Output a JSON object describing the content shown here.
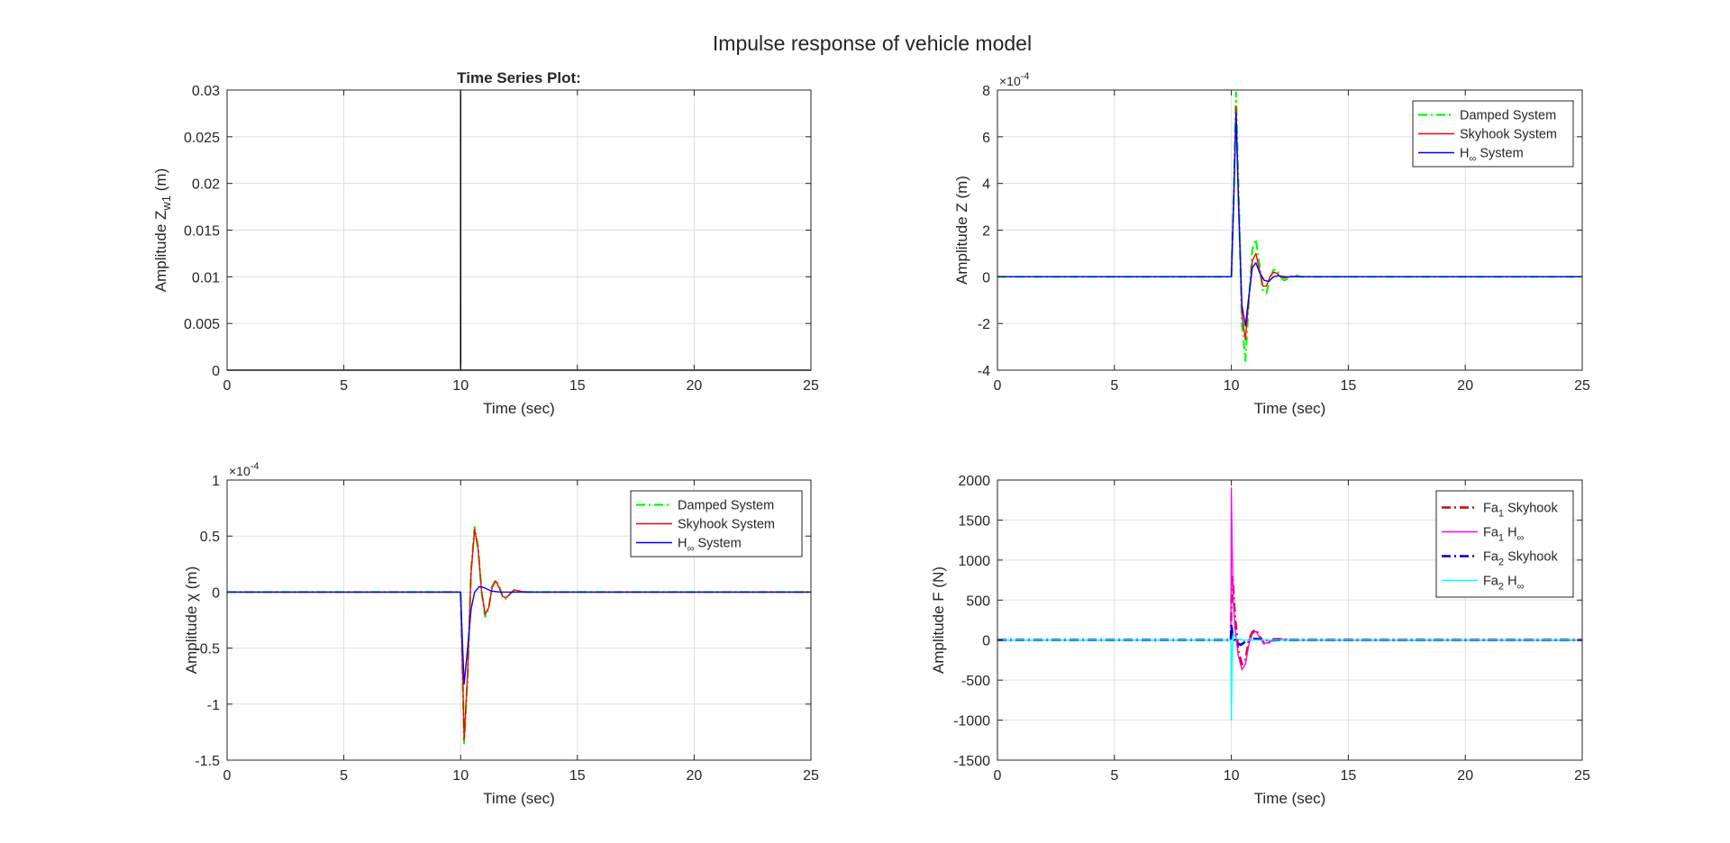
{
  "figure": {
    "title": "Impulse response of vehicle model",
    "colors": {
      "axis": "#262626",
      "grid": "#dfdfdf",
      "green": "#00ff00",
      "red": "#ff0000",
      "blue": "#0000ff",
      "magenta": "#ff00ff",
      "cyan": "#00ffff",
      "darkred": "#d40000",
      "darkblue": "#0000cc",
      "black": "#000000"
    }
  },
  "chart_data": [
    {
      "id": "p1",
      "type": "line",
      "title": "Time Series Plot:",
      "xlabel": "Time (sec)",
      "ylabel": {
        "main": "Amplitude Z",
        "sub": "w1",
        "tail": " (m)"
      },
      "xlim": [
        0,
        25
      ],
      "ylim": [
        0,
        0.03
      ],
      "xticks": [
        0,
        5,
        10,
        15,
        20,
        25
      ],
      "yticks": [
        0,
        0.005,
        0.01,
        0.015,
        0.02,
        0.025,
        0.03
      ],
      "ytick_labels": [
        "0",
        "0.005",
        "0.01",
        "0.015",
        "0.02",
        "0.025",
        "0.03"
      ],
      "exponent": null,
      "grid": true,
      "legend_position": null,
      "series": [
        {
          "color": "#000000",
          "dash": "solid",
          "width": 1.4,
          "x": [
            0,
            9.995,
            10,
            10,
            10.005,
            25
          ],
          "y": [
            0,
            0,
            0,
            0.03,
            0,
            0
          ]
        }
      ],
      "legend": []
    },
    {
      "id": "p2",
      "type": "line",
      "title": "",
      "xlabel": "Time (sec)",
      "ylabel": {
        "main": "Amplitude Z (m)",
        "sub": "",
        "tail": ""
      },
      "xlim": [
        0,
        25
      ],
      "ylim": [
        -4,
        8
      ],
      "xticks": [
        0,
        5,
        10,
        15,
        20,
        25
      ],
      "yticks": [
        -4,
        -2,
        0,
        2,
        4,
        6,
        8
      ],
      "ytick_labels": [
        "-4",
        "-2",
        "0",
        "2",
        "4",
        "6",
        "8"
      ],
      "exponent": "-4",
      "grid": true,
      "legend_position": "top-right",
      "series": [
        {
          "name": "Damped System",
          "color": "#00ff00",
          "dash": "dashdot",
          "width": 2.2,
          "x": [
            0,
            10,
            10.1,
            10.2,
            10.3,
            10.45,
            10.6,
            10.75,
            10.9,
            11.05,
            11.2,
            11.35,
            11.5,
            11.65,
            11.8,
            11.95,
            12.1,
            12.25,
            12.4,
            12.6,
            12.8,
            13.0,
            13.3,
            25
          ],
          "y": [
            0,
            0,
            3.5,
            7.9,
            4.0,
            -2.0,
            -3.6,
            -1.0,
            1.2,
            1.6,
            0.5,
            -0.6,
            -0.7,
            -0.1,
            0.3,
            0.3,
            0.0,
            -0.15,
            -0.1,
            0.05,
            0.05,
            0,
            0,
            0
          ]
        },
        {
          "name": "Skyhook System",
          "color": "#ff0000",
          "dash": "solid",
          "width": 1.4,
          "x": [
            0,
            10,
            10.1,
            10.2,
            10.3,
            10.45,
            10.6,
            10.75,
            10.9,
            11.05,
            11.2,
            11.35,
            11.5,
            11.65,
            11.8,
            11.95,
            12.1,
            12.3,
            12.6,
            13.0,
            25
          ],
          "y": [
            0,
            0,
            3.4,
            7.3,
            3.6,
            -1.6,
            -2.7,
            -0.9,
            0.7,
            1.0,
            0.3,
            -0.4,
            -0.4,
            0.0,
            0.2,
            0.15,
            0.0,
            -0.05,
            0.02,
            0,
            0
          ]
        },
        {
          "name": "H∞ System",
          "color": "#0000ff",
          "dash": "solid",
          "width": 1.4,
          "x": [
            0,
            10,
            10.1,
            10.2,
            10.3,
            10.45,
            10.6,
            10.75,
            10.9,
            11.05,
            11.2,
            11.4,
            11.6,
            11.8,
            12.0,
            12.3,
            12.7,
            13.0,
            25
          ],
          "y": [
            0,
            0,
            3.2,
            7.0,
            3.3,
            -1.2,
            -2.1,
            -0.8,
            0.4,
            0.6,
            0.2,
            -0.15,
            -0.2,
            0.0,
            0.05,
            0.0,
            0.0,
            0,
            0
          ]
        }
      ],
      "legend": [
        {
          "label": "Damped System",
          "color": "#00ff00",
          "dash": "dashdot",
          "width": 2.2
        },
        {
          "label": "Skyhook System",
          "color": "#ff0000",
          "dash": "solid",
          "width": 1.4
        },
        {
          "label": "H",
          "sub": "∞",
          "tail": " System",
          "color": "#0000ff",
          "dash": "solid",
          "width": 1.4
        }
      ]
    },
    {
      "id": "p3",
      "type": "line",
      "title": "",
      "xlabel": "Time (sec)",
      "ylabel": {
        "main": "Amplitude χ (m)",
        "sub": "",
        "tail": ""
      },
      "xlim": [
        0,
        25
      ],
      "ylim": [
        -1.5,
        1
      ],
      "xticks": [
        0,
        5,
        10,
        15,
        20,
        25
      ],
      "yticks": [
        -1.5,
        -1,
        -0.5,
        0,
        0.5,
        1
      ],
      "ytick_labels": [
        "-1.5",
        "-1",
        "-0.5",
        "0",
        "0.5",
        "1"
      ],
      "exponent": "-4",
      "grid": true,
      "legend_position": "top-right",
      "series": [
        {
          "name": "Damped System",
          "color": "#00ff00",
          "dash": "dashdot",
          "width": 2.2,
          "x": [
            0,
            10,
            10.05,
            10.15,
            10.3,
            10.45,
            10.6,
            10.75,
            10.9,
            11.05,
            11.2,
            11.35,
            11.5,
            11.65,
            11.8,
            11.95,
            12.1,
            12.3,
            12.5,
            12.8,
            13.1,
            25
          ],
          "y": [
            0,
            0,
            -0.4,
            -1.35,
            -0.75,
            0.2,
            0.58,
            0.4,
            0.0,
            -0.22,
            -0.15,
            0.05,
            0.11,
            0.05,
            -0.04,
            -0.06,
            -0.02,
            0.02,
            0.01,
            0,
            0,
            0
          ]
        },
        {
          "name": "Skyhook System",
          "color": "#ff0000",
          "dash": "solid",
          "width": 1.4,
          "x": [
            0,
            10,
            10.05,
            10.15,
            10.3,
            10.45,
            10.6,
            10.75,
            10.9,
            11.05,
            11.2,
            11.35,
            11.5,
            11.65,
            11.8,
            11.95,
            12.1,
            12.3,
            12.5,
            12.8,
            13.1,
            25
          ],
          "y": [
            0,
            0,
            -0.4,
            -1.32,
            -0.72,
            0.18,
            0.56,
            0.38,
            0.0,
            -0.2,
            -0.14,
            0.04,
            0.1,
            0.04,
            -0.04,
            -0.05,
            -0.02,
            0.02,
            0.01,
            0,
            0,
            0
          ]
        },
        {
          "name": "H∞ System",
          "color": "#0000ff",
          "dash": "solid",
          "width": 1.4,
          "x": [
            0,
            10,
            10.05,
            10.15,
            10.3,
            10.45,
            10.6,
            10.8,
            11.0,
            11.3,
            11.7,
            12.2,
            25
          ],
          "y": [
            0,
            0,
            -0.3,
            -0.82,
            -0.5,
            -0.15,
            0.0,
            0.05,
            0.04,
            0.01,
            0.0,
            0,
            0
          ]
        }
      ],
      "legend": [
        {
          "label": "Damped System",
          "color": "#00ff00",
          "dash": "dashdot",
          "width": 2.2
        },
        {
          "label": "Skyhook System",
          "color": "#ff0000",
          "dash": "solid",
          "width": 1.4
        },
        {
          "label": "H",
          "sub": "∞",
          "tail": " System",
          "color": "#0000ff",
          "dash": "solid",
          "width": 1.4
        }
      ]
    },
    {
      "id": "p4",
      "type": "line",
      "title": "",
      "xlabel": "Time (sec)",
      "ylabel": {
        "main": "Amplitude F (N)",
        "sub": "",
        "tail": ""
      },
      "xlim": [
        0,
        25
      ],
      "ylim": [
        -1500,
        2000
      ],
      "xticks": [
        0,
        5,
        10,
        15,
        20,
        25
      ],
      "yticks": [
        -1500,
        -1000,
        -500,
        0,
        500,
        1000,
        1500,
        2000
      ],
      "ytick_labels": [
        "-1500",
        "-1000",
        "-500",
        "0",
        "500",
        "1000",
        "1500",
        "2000"
      ],
      "exponent": null,
      "grid": true,
      "legend_position": "top-right",
      "series": [
        {
          "name": "Fa1 Skyhook",
          "color": "#d40000",
          "dash": "dashdot",
          "width": 2.6,
          "x": [
            0,
            9.98,
            10.0,
            10.05,
            10.15,
            10.3,
            10.45,
            10.6,
            10.75,
            10.9,
            11.05,
            11.2,
            11.4,
            11.6,
            11.8,
            12.1,
            12.5,
            25
          ],
          "y": [
            0,
            0,
            500,
            800,
            300,
            -150,
            -300,
            -250,
            0,
            100,
            130,
            50,
            -40,
            -30,
            10,
            10,
            0,
            0
          ]
        },
        {
          "name": "Fa1 H∞",
          "color": "#ff00ff",
          "dash": "solid",
          "width": 1.4,
          "x": [
            0,
            9.98,
            10.0,
            10.03,
            10.08,
            10.15,
            10.3,
            10.45,
            10.6,
            10.75,
            10.9,
            11.05,
            11.2,
            11.4,
            11.6,
            11.8,
            12.1,
            12.5,
            25
          ],
          "y": [
            0,
            0,
            1900,
            1200,
            500,
            150,
            -200,
            -370,
            -300,
            -50,
            80,
            110,
            40,
            -40,
            -30,
            10,
            10,
            0,
            0
          ]
        },
        {
          "name": "Fa2 Skyhook",
          "color": "#0000cc",
          "dash": "dashdot",
          "width": 2.6,
          "x": [
            0,
            9.98,
            10.0,
            10.05,
            10.2,
            10.4,
            10.6,
            10.9,
            11.2,
            11.6,
            12.0,
            25
          ],
          "y": [
            0,
            0,
            200,
            60,
            -30,
            -60,
            -20,
            20,
            10,
            -5,
            0,
            0
          ]
        },
        {
          "name": "Fa2 H∞",
          "color": "#00ffff",
          "dash": "solid",
          "width": 1.4,
          "x": [
            0,
            9.98,
            10.0,
            10.03,
            10.08,
            10.2,
            10.5,
            11.0,
            25
          ],
          "y": [
            0,
            0,
            -1000,
            -300,
            80,
            20,
            0,
            0,
            0
          ]
        }
      ],
      "legend": [
        {
          "label": "Fa",
          "sub": "1",
          "tail": " Skyhook",
          "color": "#d40000",
          "dash": "dashdot",
          "width": 2.6
        },
        {
          "label": "Fa",
          "sub": "1",
          "tail": " H",
          "sub2": "∞",
          "color": "#ff00ff",
          "dash": "solid",
          "width": 1.4
        },
        {
          "label": "Fa",
          "sub": "2",
          "tail": " Skyhook",
          "color": "#0000cc",
          "dash": "dashdot",
          "width": 2.6
        },
        {
          "label": "Fa",
          "sub": "2",
          "tail": " H",
          "sub2": "∞",
          "color": "#00ffff",
          "dash": "solid",
          "width": 1.4
        }
      ]
    }
  ]
}
